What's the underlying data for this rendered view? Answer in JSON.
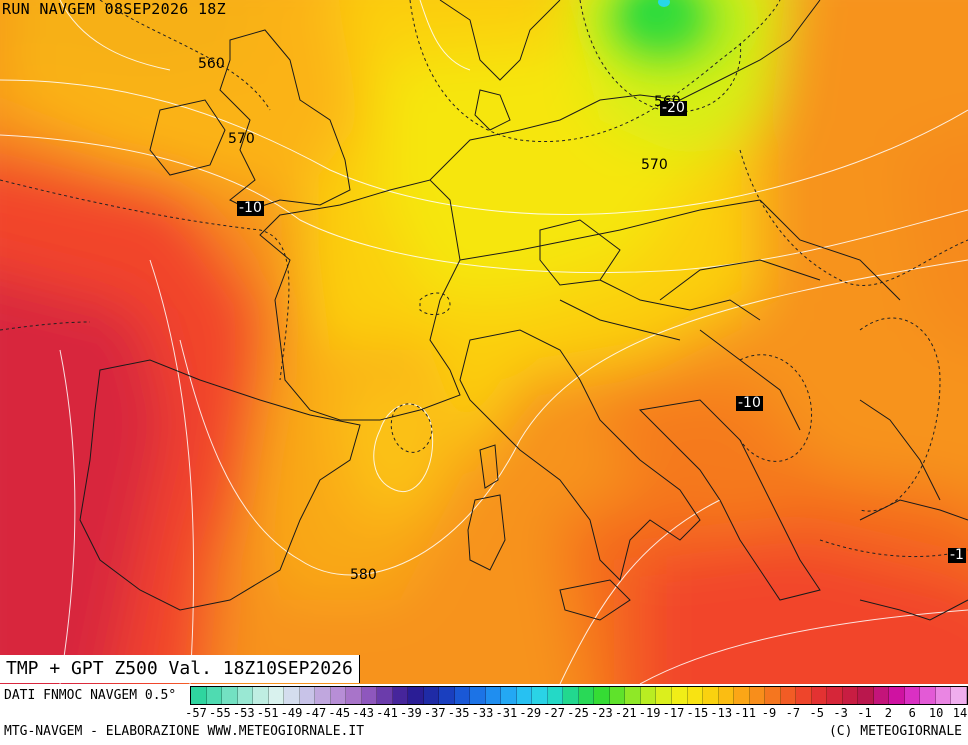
{
  "header": {
    "run_title": "RUN NAVGEM 08SEP2026 18Z"
  },
  "caption": {
    "main": "TMP + GPT Z500 Val. 18Z10SEP2026"
  },
  "map": {
    "geopotential_labels": [
      "560",
      "570",
      "560",
      "570",
      "580"
    ],
    "temperature_labels": [
      "-10",
      "-20",
      "-10",
      "-1"
    ],
    "colors": {
      "deep_red": "#d8263d",
      "red": "#f2452a",
      "orange_red": "#f46a1f",
      "orange": "#f7931c",
      "amber": "#fbb316",
      "yellow_orange": "#fbcf10",
      "yellow": "#f6e60a",
      "lime": "#c6ee1a",
      "green": "#2edc3b",
      "cyan": "#28d7e8"
    }
  },
  "legend": {
    "data_source": "DATI FNMOC NAVGEM 0.5°",
    "ticks": [
      "-57",
      "-55",
      "-53",
      "-51",
      "-49",
      "-47",
      "-45",
      "-43",
      "-41",
      "-39",
      "-37",
      "-35",
      "-33",
      "-31",
      "-29",
      "-27",
      "-25",
      "-23",
      "-21",
      "-19",
      "-17",
      "-15",
      "-13",
      "-11",
      "-9",
      "-7",
      "-5",
      "-3",
      "-1",
      "2",
      "6",
      "10",
      "14"
    ],
    "swatch_colors": [
      "#2fd59f",
      "#4fdbb1",
      "#73e1c2",
      "#99e8d3",
      "#bfeee2",
      "#d9f2ee",
      "#d4ddee",
      "#c8c3e8",
      "#c0a7de",
      "#b78ed6",
      "#a874c9",
      "#8e57bd",
      "#6b3cab",
      "#46259b",
      "#2a1d95",
      "#1f2ba6",
      "#1a3fbf",
      "#1a58d6",
      "#1c73e6",
      "#1f8ef0",
      "#23a8f4",
      "#27c1f2",
      "#2ad3e6",
      "#24d9c6",
      "#22d88f",
      "#29d957",
      "#35dc34",
      "#5fe22b",
      "#8fe827",
      "#b9ed22",
      "#dbef1d",
      "#f1ee17",
      "#f8e312",
      "#fad20f",
      "#fbbd12",
      "#fba616",
      "#f88e1b",
      "#f5761f",
      "#f25c25",
      "#ee452b",
      "#e33232",
      "#d62639",
      "#c81d42",
      "#ba174d",
      "#c4147a",
      "#cf12a1",
      "#da30c3",
      "#e35ad6",
      "#ea85e3",
      "#f0aeee"
    ],
    "credit_left": "MTG-NAVGEM - ELABORAZIONE WWW.METEOGIORNALE.IT",
    "credit_right": "(C) METEOGIORNALE"
  }
}
